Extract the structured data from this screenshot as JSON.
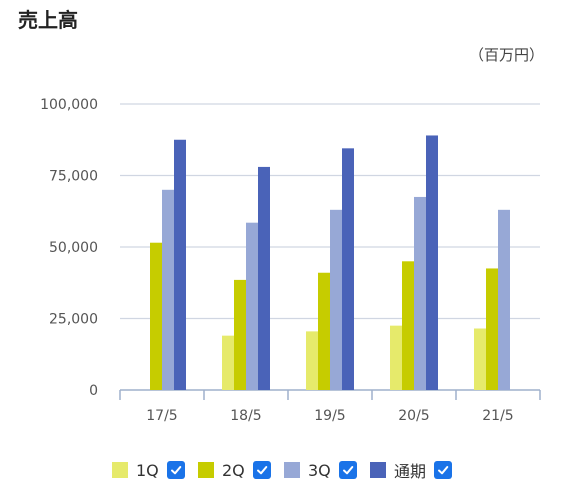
{
  "title": "売上高",
  "unit_label": "（百万円）",
  "colors": {
    "q1": "#e6ea6b",
    "q2": "#c6cc00",
    "q3": "#97a8d6",
    "full": "#4a63b8",
    "grid": "#d0d6e2",
    "axis": "#9fb0cc",
    "checkbox": "#1a73e8"
  },
  "chart_data": {
    "type": "bar",
    "categories": [
      "17/5",
      "18/5",
      "19/5",
      "20/5",
      "21/5"
    ],
    "series": [
      {
        "name": "1Q",
        "values": [
          null,
          19000,
          20500,
          22500,
          21500
        ]
      },
      {
        "name": "2Q",
        "values": [
          51500,
          38500,
          41000,
          45000,
          42500
        ]
      },
      {
        "name": "3Q",
        "values": [
          70000,
          58500,
          63000,
          67500,
          63000
        ]
      },
      {
        "name": "通期",
        "values": [
          87500,
          78000,
          84500,
          89000,
          null
        ]
      }
    ],
    "ylim": [
      0,
      100000
    ],
    "yticks": [
      "0",
      "25,000",
      "50,000",
      "75,000",
      "100,000"
    ],
    "ytick_values": [
      0,
      25000,
      50000,
      75000,
      100000
    ],
    "grid": true,
    "legend_position": "bottom"
  },
  "legend": [
    {
      "label": "1Q",
      "color_key": "q1",
      "checked": true
    },
    {
      "label": "2Q",
      "color_key": "q2",
      "checked": true
    },
    {
      "label": "3Q",
      "color_key": "q3",
      "checked": true
    },
    {
      "label": "通期",
      "color_key": "full",
      "checked": true
    }
  ]
}
